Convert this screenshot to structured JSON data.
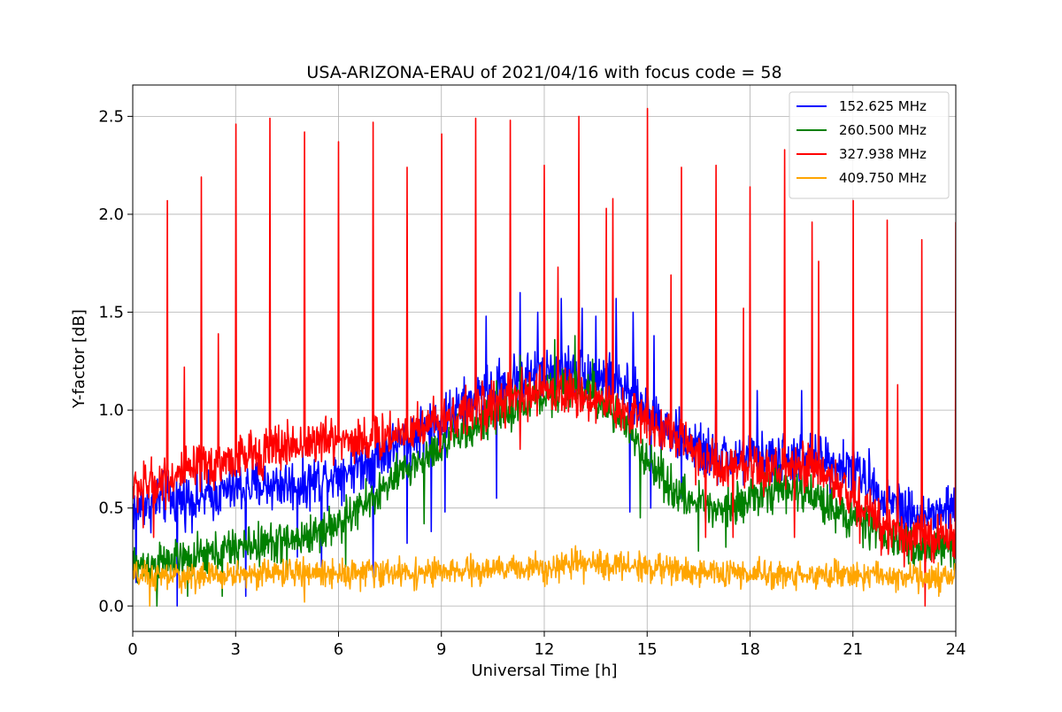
{
  "chart_data": {
    "type": "line",
    "title": "USA-ARIZONA-ERAU of 2021/04/16 with focus code = 58",
    "xlabel": "Universal Time [h]",
    "ylabel": "Y-factor [dB]",
    "xlim": [
      0,
      24
    ],
    "ylim": [
      -0.13,
      2.66
    ],
    "xticks": [
      0,
      3,
      6,
      9,
      12,
      15,
      18,
      21,
      24
    ],
    "xtick_labels": [
      "0",
      "3",
      "6",
      "9",
      "12",
      "15",
      "18",
      "21",
      "24"
    ],
    "yticks": [
      0.0,
      0.5,
      1.0,
      1.5,
      2.0,
      2.5
    ],
    "ytick_labels": [
      "0.0",
      "0.5",
      "1.0",
      "1.5",
      "2.0",
      "2.5"
    ],
    "grid": true,
    "legend_position": "top-right",
    "series": [
      {
        "name": "152.625 MHz",
        "color": "#0000ff",
        "noise": 0.14,
        "x": [
          0,
          1,
          2,
          3,
          4,
          5,
          6,
          7,
          8,
          9,
          10,
          11,
          12,
          13,
          14,
          15,
          16,
          17,
          18,
          19,
          20,
          21,
          22,
          23,
          24
        ],
        "values": [
          0.5,
          0.55,
          0.55,
          0.6,
          0.62,
          0.62,
          0.68,
          0.75,
          0.85,
          0.95,
          1.05,
          1.15,
          1.2,
          1.2,
          1.15,
          1.0,
          0.85,
          0.75,
          0.75,
          0.75,
          0.75,
          0.7,
          0.55,
          0.45,
          0.5
        ],
        "spikes": [
          [
            10.0,
            1.52
          ],
          [
            10.3,
            1.48
          ],
          [
            11.3,
            1.6
          ],
          [
            11.8,
            1.5
          ],
          [
            12.5,
            1.57
          ],
          [
            13.1,
            1.52
          ],
          [
            13.5,
            1.48
          ],
          [
            14.1,
            1.57
          ],
          [
            14.6,
            1.5
          ],
          [
            15.2,
            1.38
          ],
          [
            17.0,
            1.2
          ],
          [
            18.2,
            1.1
          ],
          [
            19.5,
            1.1
          ],
          [
            21.0,
            1.05
          ]
        ],
        "dips": [
          [
            0.1,
            0.12
          ],
          [
            1.3,
            0.0
          ],
          [
            3.3,
            0.05
          ],
          [
            4.8,
            0.25
          ],
          [
            5.5,
            0.2
          ],
          [
            7.0,
            0.15
          ],
          [
            8.0,
            0.32
          ],
          [
            8.7,
            0.38
          ],
          [
            9.1,
            0.48
          ],
          [
            10.0,
            0.62
          ],
          [
            10.6,
            0.55
          ],
          [
            11.3,
            0.45
          ],
          [
            12.5,
            0.55
          ],
          [
            14.5,
            0.48
          ],
          [
            15.1,
            0.5
          ],
          [
            16.0,
            0.55
          ]
        ]
      },
      {
        "name": "260.500 MHz",
        "color": "#008000",
        "noise": 0.11,
        "x": [
          0,
          1,
          2,
          3,
          4,
          5,
          6,
          7,
          8,
          9,
          10,
          11,
          12,
          13,
          14,
          15,
          16,
          17,
          18,
          19,
          20,
          21,
          22,
          23,
          24
        ],
        "values": [
          0.2,
          0.22,
          0.25,
          0.3,
          0.32,
          0.35,
          0.42,
          0.55,
          0.7,
          0.82,
          0.92,
          1.0,
          1.08,
          1.12,
          1.0,
          0.75,
          0.55,
          0.5,
          0.55,
          0.6,
          0.55,
          0.45,
          0.35,
          0.3,
          0.3
        ],
        "spikes": [
          [
            11.3,
            1.28
          ],
          [
            12.3,
            1.36
          ],
          [
            12.9,
            1.38
          ],
          [
            13.4,
            1.26
          ],
          [
            10.6,
            1.15
          ]
        ],
        "dips": [
          [
            0.7,
            0.0
          ],
          [
            1.6,
            0.05
          ],
          [
            2.6,
            0.05
          ],
          [
            4.5,
            0.15
          ],
          [
            6.2,
            0.2
          ],
          [
            8.5,
            0.42
          ],
          [
            14.8,
            0.45
          ],
          [
            16.5,
            0.28
          ],
          [
            17.3,
            0.3
          ]
        ]
      },
      {
        "name": "327.938 MHz",
        "color": "#ff0000",
        "noise": 0.13,
        "x": [
          0,
          1,
          2,
          3,
          4,
          5,
          6,
          7,
          8,
          9,
          10,
          11,
          12,
          13,
          14,
          15,
          16,
          17,
          18,
          19,
          20,
          21,
          22,
          23,
          24
        ],
        "values": [
          0.6,
          0.65,
          0.7,
          0.75,
          0.8,
          0.83,
          0.85,
          0.85,
          0.9,
          0.95,
          1.0,
          1.05,
          1.1,
          1.08,
          1.02,
          0.95,
          0.85,
          0.7,
          0.68,
          0.7,
          0.7,
          0.55,
          0.4,
          0.35,
          0.35
        ],
        "spikes": [
          [
            1.0,
            2.07
          ],
          [
            1.5,
            1.22
          ],
          [
            2.0,
            2.19
          ],
          [
            2.5,
            1.39
          ],
          [
            3.0,
            2.46
          ],
          [
            4.0,
            2.49
          ],
          [
            5.0,
            2.42
          ],
          [
            6.0,
            2.37
          ],
          [
            7.0,
            2.47
          ],
          [
            8.0,
            2.24
          ],
          [
            9.0,
            2.41
          ],
          [
            10.0,
            2.49
          ],
          [
            11.0,
            2.48
          ],
          [
            12.0,
            2.25
          ],
          [
            12.4,
            1.73
          ],
          [
            13.0,
            2.5
          ],
          [
            13.8,
            2.03
          ],
          [
            14.0,
            2.08
          ],
          [
            15.0,
            2.54
          ],
          [
            15.7,
            1.69
          ],
          [
            16.0,
            2.24
          ],
          [
            17.0,
            2.25
          ],
          [
            17.8,
            1.52
          ],
          [
            18.0,
            2.14
          ],
          [
            19.0,
            2.33
          ],
          [
            19.8,
            1.96
          ],
          [
            20.0,
            1.76
          ],
          [
            21.0,
            2.07
          ],
          [
            22.0,
            1.97
          ],
          [
            22.3,
            1.13
          ],
          [
            23.0,
            1.87
          ],
          [
            24.0,
            1.96
          ]
        ],
        "dips": [
          [
            0.3,
            0.4
          ],
          [
            0.6,
            0.35
          ],
          [
            11.3,
            0.8
          ],
          [
            16.7,
            0.35
          ],
          [
            17.5,
            0.35
          ],
          [
            19.3,
            0.35
          ],
          [
            21.2,
            0.32
          ],
          [
            22.5,
            0.2
          ],
          [
            23.1,
            0.0
          ]
        ]
      },
      {
        "name": "409.750 MHz",
        "color": "#ffa500",
        "noise": 0.075,
        "x": [
          0,
          1,
          2,
          3,
          4,
          5,
          6,
          7,
          8,
          9,
          10,
          11,
          12,
          13,
          14,
          15,
          16,
          17,
          18,
          19,
          20,
          21,
          22,
          23,
          24
        ],
        "values": [
          0.15,
          0.15,
          0.15,
          0.16,
          0.17,
          0.17,
          0.17,
          0.17,
          0.17,
          0.17,
          0.18,
          0.19,
          0.2,
          0.21,
          0.21,
          0.2,
          0.18,
          0.17,
          0.16,
          0.16,
          0.16,
          0.16,
          0.15,
          0.15,
          0.15
        ],
        "spikes": [],
        "dips": [
          [
            0.5,
            0.0
          ],
          [
            5.0,
            0.02
          ],
          [
            23.5,
            0.05
          ]
        ]
      }
    ]
  }
}
